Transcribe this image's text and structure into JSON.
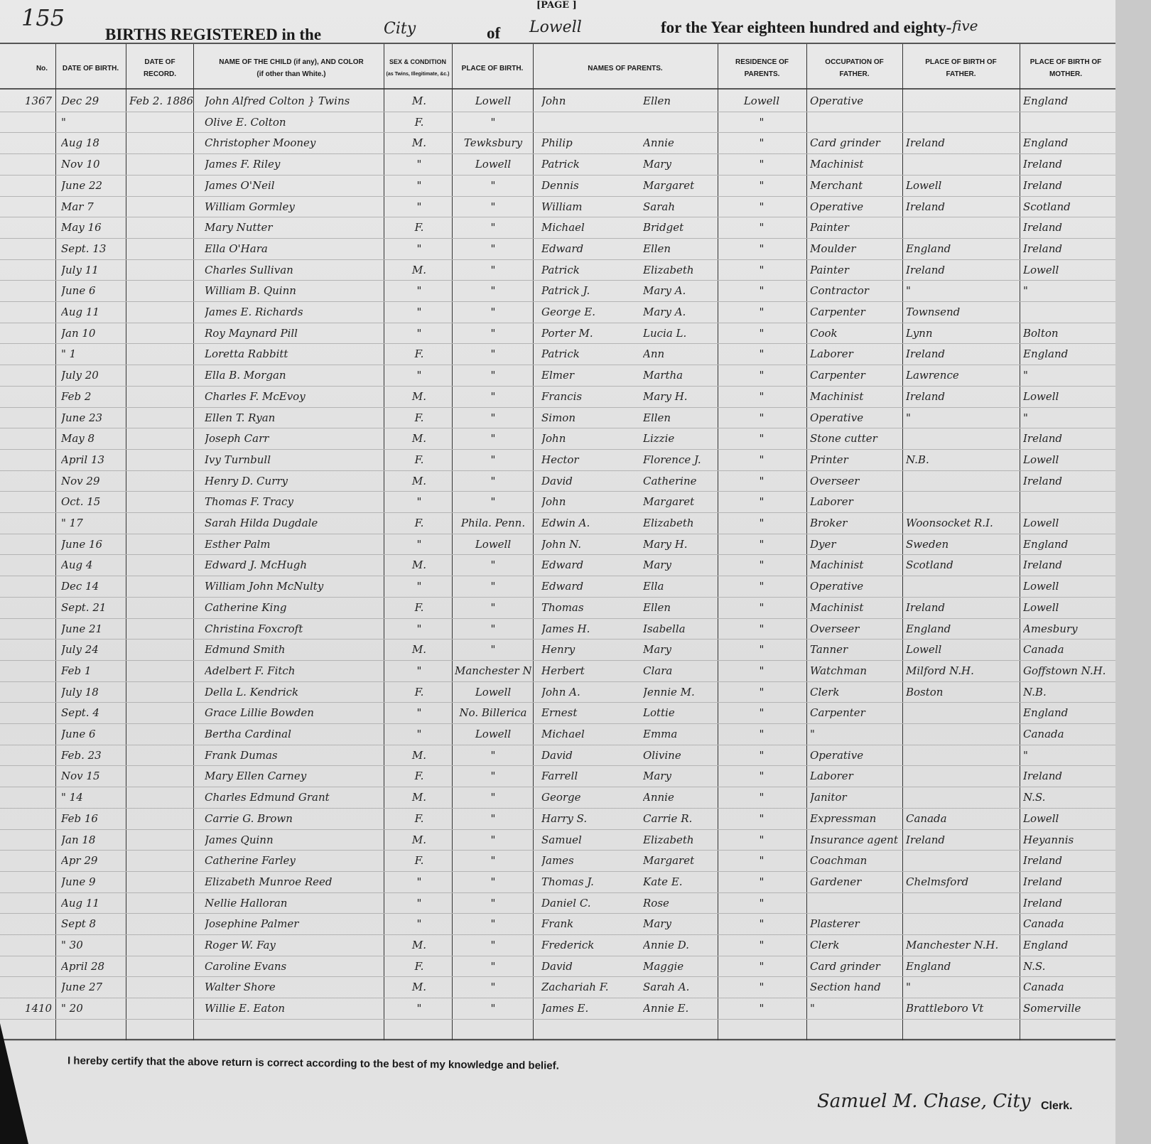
{
  "page_number_handwritten": "155",
  "page_label": "[PAGE ]",
  "title": "BIRTHS REGISTERED in the",
  "city_type": "City",
  "of_label": "of",
  "city": "Lowell",
  "year_text": "for the Year eighteen hundred and eighty-",
  "year_suffix": "five",
  "columns": [
    {
      "key": "no",
      "label": "No."
    },
    {
      "key": "dob",
      "label": "DATE OF BIRTH."
    },
    {
      "key": "recorded",
      "label": "DATE OF RECORD."
    },
    {
      "key": "name",
      "label": "NAME OF THE CHILD (if any), AND COLOR",
      "sublabel": "(if other than White.)"
    },
    {
      "key": "sex",
      "label": "SEX & CONDITION",
      "sublabel": "(as Twins, Illegitimate, &c.)"
    },
    {
      "key": "place",
      "label": "PLACE OF BIRTH."
    },
    {
      "key": "parents",
      "label": "NAMES OF PARENTS."
    },
    {
      "key": "residence",
      "label": "RESIDENCE OF PARENTS."
    },
    {
      "key": "occupation",
      "label": "OCCUPATION OF FATHER."
    },
    {
      "key": "father_birth",
      "label": "PLACE OF BIRTH OF FATHER."
    },
    {
      "key": "mother_birth",
      "label": "PLACE OF BIRTH OF MOTHER."
    }
  ],
  "rows": [
    {
      "no": "1367",
      "dob": "Dec 29",
      "recorded": "Feb 2. 1886",
      "name": "John Alfred Colton } Twins",
      "sex": "M.",
      "place": "Lowell",
      "father": "John",
      "mother": "Ellen",
      "residence": "Lowell",
      "occupation": "Operative",
      "father_birth": "",
      "mother_birth": "England"
    },
    {
      "no": "",
      "dob": "\"",
      "recorded": "",
      "name": "Olive E. Colton",
      "sex": "F.",
      "place": "\"",
      "father": "",
      "mother": "",
      "residence": "\"",
      "occupation": "",
      "father_birth": "",
      "mother_birth": ""
    },
    {
      "no": "",
      "dob": "Aug 18",
      "recorded": "",
      "name": "Christopher Mooney",
      "sex": "M.",
      "place": "Tewksbury",
      "father": "Philip",
      "mother": "Annie",
      "residence": "\"",
      "occupation": "Card grinder",
      "father_birth": "Ireland",
      "mother_birth": "England"
    },
    {
      "no": "",
      "dob": "Nov 10",
      "recorded": "",
      "name": "James F. Riley",
      "sex": "\"",
      "place": "Lowell",
      "father": "Patrick",
      "mother": "Mary",
      "residence": "\"",
      "occupation": "Machinist",
      "father_birth": "",
      "mother_birth": "Ireland"
    },
    {
      "no": "",
      "dob": "June 22",
      "recorded": "",
      "name": "James O'Neil",
      "sex": "\"",
      "place": "\"",
      "father": "Dennis",
      "mother": "Margaret",
      "residence": "\"",
      "occupation": "Merchant",
      "father_birth": "Lowell",
      "mother_birth": "Ireland"
    },
    {
      "no": "",
      "dob": "Mar 7",
      "recorded": "",
      "name": "William Gormley",
      "sex": "\"",
      "place": "\"",
      "father": "William",
      "mother": "Sarah",
      "residence": "\"",
      "occupation": "Operative",
      "father_birth": "Ireland",
      "mother_birth": "Scotland"
    },
    {
      "no": "",
      "dob": "May 16",
      "recorded": "",
      "name": "Mary Nutter",
      "sex": "F.",
      "place": "\"",
      "father": "Michael",
      "mother": "Bridget",
      "residence": "\"",
      "occupation": "Painter",
      "father_birth": "",
      "mother_birth": "Ireland"
    },
    {
      "no": "",
      "dob": "Sept. 13",
      "recorded": "",
      "name": "Ella O'Hara",
      "sex": "\"",
      "place": "\"",
      "father": "Edward",
      "mother": "Ellen",
      "residence": "\"",
      "occupation": "Moulder",
      "father_birth": "England",
      "mother_birth": "Ireland"
    },
    {
      "no": "",
      "dob": "July 11",
      "recorded": "",
      "name": "Charles Sullivan",
      "sex": "M.",
      "place": "\"",
      "father": "Patrick",
      "mother": "Elizabeth",
      "residence": "\"",
      "occupation": "Painter",
      "father_birth": "Ireland",
      "mother_birth": "Lowell"
    },
    {
      "no": "",
      "dob": "June 6",
      "recorded": "",
      "name": "William B. Quinn",
      "sex": "\"",
      "place": "\"",
      "father": "Patrick J.",
      "mother": "Mary A.",
      "residence": "\"",
      "occupation": "Contractor",
      "father_birth": "\"",
      "mother_birth": "\""
    },
    {
      "no": "",
      "dob": "Aug 11",
      "recorded": "",
      "name": "James E. Richards",
      "sex": "\"",
      "place": "\"",
      "father": "George E.",
      "mother": "Mary A.",
      "residence": "\"",
      "occupation": "Carpenter",
      "father_birth": "Townsend",
      "mother_birth": ""
    },
    {
      "no": "",
      "dob": "Jan 10",
      "recorded": "",
      "name": "Roy Maynard Pill",
      "sex": "\"",
      "place": "\"",
      "father": "Porter M.",
      "mother": "Lucia L.",
      "residence": "\"",
      "occupation": "Cook",
      "father_birth": "Lynn",
      "mother_birth": "Bolton"
    },
    {
      "no": "",
      "dob": "\" 1",
      "recorded": "",
      "name": "Loretta Rabbitt",
      "sex": "F.",
      "place": "\"",
      "father": "Patrick",
      "mother": "Ann",
      "residence": "\"",
      "occupation": "Laborer",
      "father_birth": "Ireland",
      "mother_birth": "England"
    },
    {
      "no": "",
      "dob": "July 20",
      "recorded": "",
      "name": "Ella B. Morgan",
      "sex": "\"",
      "place": "\"",
      "father": "Elmer",
      "mother": "Martha",
      "residence": "\"",
      "occupation": "Carpenter",
      "father_birth": "Lawrence",
      "mother_birth": "\""
    },
    {
      "no": "",
      "dob": "Feb 2",
      "recorded": "",
      "name": "Charles F. McEvoy",
      "sex": "M.",
      "place": "\"",
      "father": "Francis",
      "mother": "Mary H.",
      "residence": "\"",
      "occupation": "Machinist",
      "father_birth": "Ireland",
      "mother_birth": "Lowell"
    },
    {
      "no": "",
      "dob": "June 23",
      "recorded": "",
      "name": "Ellen T. Ryan",
      "sex": "F.",
      "place": "\"",
      "father": "Simon",
      "mother": "Ellen",
      "residence": "\"",
      "occupation": "Operative",
      "father_birth": "\"",
      "mother_birth": "\""
    },
    {
      "no": "",
      "dob": "May 8",
      "recorded": "",
      "name": "Joseph Carr",
      "sex": "M.",
      "place": "\"",
      "father": "John",
      "mother": "Lizzie",
      "residence": "\"",
      "occupation": "Stone cutter",
      "father_birth": "",
      "mother_birth": "Ireland"
    },
    {
      "no": "",
      "dob": "April 13",
      "recorded": "",
      "name": "Ivy Turnbull",
      "sex": "F.",
      "place": "\"",
      "father": "Hector",
      "mother": "Florence J.",
      "residence": "\"",
      "occupation": "Printer",
      "father_birth": "N.B.",
      "mother_birth": "Lowell"
    },
    {
      "no": "",
      "dob": "Nov 29",
      "recorded": "",
      "name": "Henry D. Curry",
      "sex": "M.",
      "place": "\"",
      "father": "David",
      "mother": "Catherine",
      "residence": "\"",
      "occupation": "Overseer",
      "father_birth": "",
      "mother_birth": "Ireland"
    },
    {
      "no": "",
      "dob": "Oct. 15",
      "recorded": "",
      "name": "Thomas F. Tracy",
      "sex": "\"",
      "place": "\"",
      "father": "John",
      "mother": "Margaret",
      "residence": "\"",
      "occupation": "Laborer",
      "father_birth": "",
      "mother_birth": ""
    },
    {
      "no": "",
      "dob": "\" 17",
      "recorded": "",
      "name": "Sarah Hilda Dugdale",
      "sex": "F.",
      "place": "Phila. Penn.",
      "father": "Edwin A.",
      "mother": "Elizabeth",
      "residence": "\"",
      "occupation": "Broker",
      "father_birth": "Woonsocket R.I.",
      "mother_birth": "Lowell"
    },
    {
      "no": "",
      "dob": "June 16",
      "recorded": "",
      "name": "Esther Palm",
      "sex": "\"",
      "place": "Lowell",
      "father": "John N.",
      "mother": "Mary H.",
      "residence": "\"",
      "occupation": "Dyer",
      "father_birth": "Sweden",
      "mother_birth": "England"
    },
    {
      "no": "",
      "dob": "Aug 4",
      "recorded": "",
      "name": "Edward J. McHugh",
      "sex": "M.",
      "place": "\"",
      "father": "Edward",
      "mother": "Mary",
      "residence": "\"",
      "occupation": "Machinist",
      "father_birth": "Scotland",
      "mother_birth": "Ireland"
    },
    {
      "no": "",
      "dob": "Dec 14",
      "recorded": "",
      "name": "William John McNulty",
      "sex": "\"",
      "place": "\"",
      "father": "Edward",
      "mother": "Ella",
      "residence": "\"",
      "occupation": "Operative",
      "father_birth": "",
      "mother_birth": "Lowell"
    },
    {
      "no": "",
      "dob": "Sept. 21",
      "recorded": "",
      "name": "Catherine King",
      "sex": "F.",
      "place": "\"",
      "father": "Thomas",
      "mother": "Ellen",
      "residence": "\"",
      "occupation": "Machinist",
      "father_birth": "Ireland",
      "mother_birth": "Lowell"
    },
    {
      "no": "",
      "dob": "June 21",
      "recorded": "",
      "name": "Christina Foxcroft",
      "sex": "\"",
      "place": "\"",
      "father": "James H.",
      "mother": "Isabella",
      "residence": "\"",
      "occupation": "Overseer",
      "father_birth": "England",
      "mother_birth": "Amesbury"
    },
    {
      "no": "",
      "dob": "July 24",
      "recorded": "",
      "name": "Edmund Smith",
      "sex": "M.",
      "place": "\"",
      "father": "Henry",
      "mother": "Mary",
      "residence": "\"",
      "occupation": "Tanner",
      "father_birth": "Lowell",
      "mother_birth": "Canada"
    },
    {
      "no": "",
      "dob": "Feb 1",
      "recorded": "",
      "name": "Adelbert F. Fitch",
      "sex": "\"",
      "place": "Manchester N.H.",
      "father": "Herbert",
      "mother": "Clara",
      "residence": "\"",
      "occupation": "Watchman",
      "father_birth": "Milford N.H.",
      "mother_birth": "Goffstown N.H."
    },
    {
      "no": "",
      "dob": "July 18",
      "recorded": "",
      "name": "Della L. Kendrick",
      "sex": "F.",
      "place": "Lowell",
      "father": "John A.",
      "mother": "Jennie M.",
      "residence": "\"",
      "occupation": "Clerk",
      "father_birth": "Boston",
      "mother_birth": "N.B."
    },
    {
      "no": "",
      "dob": "Sept. 4",
      "recorded": "",
      "name": "Grace Lillie Bowden",
      "sex": "\"",
      "place": "No. Billerica",
      "father": "Ernest",
      "mother": "Lottie",
      "residence": "\"",
      "occupation": "Carpenter",
      "father_birth": "",
      "mother_birth": "England"
    },
    {
      "no": "",
      "dob": "June 6",
      "recorded": "",
      "name": "Bertha Cardinal",
      "sex": "\"",
      "place": "Lowell",
      "father": "Michael",
      "mother": "Emma",
      "residence": "\"",
      "occupation": "\"",
      "father_birth": "",
      "mother_birth": "Canada"
    },
    {
      "no": "",
      "dob": "Feb. 23",
      "recorded": "",
      "name": "Frank Dumas",
      "sex": "M.",
      "place": "\"",
      "father": "David",
      "mother": "Olivine",
      "residence": "\"",
      "occupation": "Operative",
      "father_birth": "",
      "mother_birth": "\""
    },
    {
      "no": "",
      "dob": "Nov 15",
      "recorded": "",
      "name": "Mary Ellen Carney",
      "sex": "F.",
      "place": "\"",
      "father": "Farrell",
      "mother": "Mary",
      "residence": "\"",
      "occupation": "Laborer",
      "father_birth": "",
      "mother_birth": "Ireland"
    },
    {
      "no": "",
      "dob": "\" 14",
      "recorded": "",
      "name": "Charles Edmund Grant",
      "sex": "M.",
      "place": "\"",
      "father": "George",
      "mother": "Annie",
      "residence": "\"",
      "occupation": "Janitor",
      "father_birth": "",
      "mother_birth": "N.S."
    },
    {
      "no": "",
      "dob": "Feb 16",
      "recorded": "",
      "name": "Carrie G. Brown",
      "sex": "F.",
      "place": "\"",
      "father": "Harry S.",
      "mother": "Carrie R.",
      "residence": "\"",
      "occupation": "Expressman",
      "father_birth": "Canada",
      "mother_birth": "Lowell"
    },
    {
      "no": "",
      "dob": "Jan 18",
      "recorded": "",
      "name": "James Quinn",
      "sex": "M.",
      "place": "\"",
      "father": "Samuel",
      "mother": "Elizabeth",
      "residence": "\"",
      "occupation": "Insurance agent",
      "father_birth": "Ireland",
      "mother_birth": "Heyannis"
    },
    {
      "no": "",
      "dob": "Apr 29",
      "recorded": "",
      "name": "Catherine Farley",
      "sex": "F.",
      "place": "\"",
      "father": "James",
      "mother": "Margaret",
      "residence": "\"",
      "occupation": "Coachman",
      "father_birth": "",
      "mother_birth": "Ireland"
    },
    {
      "no": "",
      "dob": "June 9",
      "recorded": "",
      "name": "Elizabeth Munroe Reed",
      "sex": "\"",
      "place": "\"",
      "father": "Thomas J.",
      "mother": "Kate E.",
      "residence": "\"",
      "occupation": "Gardener",
      "father_birth": "Chelmsford",
      "mother_birth": "Ireland"
    },
    {
      "no": "",
      "dob": "Aug 11",
      "recorded": "",
      "name": "Nellie Halloran",
      "sex": "\"",
      "place": "\"",
      "father": "Daniel C.",
      "mother": "Rose",
      "residence": "\"",
      "occupation": "",
      "father_birth": "",
      "mother_birth": "Ireland"
    },
    {
      "no": "",
      "dob": "Sept 8",
      "recorded": "",
      "name": "Josephine Palmer",
      "sex": "\"",
      "place": "\"",
      "father": "Frank",
      "mother": "Mary",
      "residence": "\"",
      "occupation": "Plasterer",
      "father_birth": "",
      "mother_birth": "Canada"
    },
    {
      "no": "",
      "dob": "\" 30",
      "recorded": "",
      "name": "Roger W. Fay",
      "sex": "M.",
      "place": "\"",
      "father": "Frederick",
      "mother": "Annie D.",
      "residence": "\"",
      "occupation": "Clerk",
      "father_birth": "Manchester N.H.",
      "mother_birth": "England"
    },
    {
      "no": "",
      "dob": "April 28",
      "recorded": "",
      "name": "Caroline Evans",
      "sex": "F.",
      "place": "\"",
      "father": "David",
      "mother": "Maggie",
      "residence": "\"",
      "occupation": "Card grinder",
      "father_birth": "England",
      "mother_birth": "N.S."
    },
    {
      "no": "",
      "dob": "June 27",
      "recorded": "",
      "name": "Walter Shore",
      "sex": "M.",
      "place": "\"",
      "father": "Zachariah F.",
      "mother": "Sarah A.",
      "residence": "\"",
      "occupation": "Section hand",
      "father_birth": "\"",
      "mother_birth": "Canada"
    },
    {
      "no": "1410",
      "dob": "\" 20",
      "recorded": "",
      "name": "Willie E. Eaton",
      "sex": "\"",
      "place": "\"",
      "father": "James E.",
      "mother": "Annie E.",
      "residence": "\"",
      "occupation": "\"",
      "father_birth": "Brattleboro Vt",
      "mother_birth": "Somerville"
    }
  ],
  "footer": {
    "certification": "I hereby certify that the above return is correct according to the best of my knowledge and belief.",
    "signature": "Samuel M. Chase, City",
    "clerk_label": "Clerk."
  }
}
